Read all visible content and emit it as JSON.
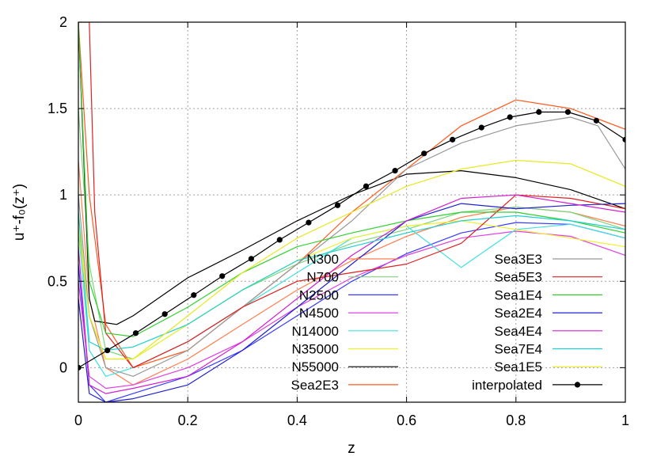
{
  "chart_data": {
    "type": "line",
    "title": "",
    "xlabel": "z",
    "ylabel": "u⁺-f₀(z⁺)",
    "xlim": [
      0,
      1
    ],
    "ylim": [
      -0.2,
      2
    ],
    "xticks": [
      "0",
      "0.2",
      "0.4",
      "0.6",
      "0.8",
      "1"
    ],
    "xtick_values": [
      0,
      0.2,
      0.4,
      0.6,
      0.8,
      1
    ],
    "yticks": [
      "0",
      "0.5",
      "1",
      "1.5",
      "2"
    ],
    "ytick_values": [
      0,
      0.5,
      1,
      1.5,
      2
    ],
    "grid": true,
    "legend_placement": "bottom-right, two columns",
    "series": [
      {
        "name": "N300",
        "color": "#ff7f50",
        "col": 0,
        "x": [
          0.0,
          0.02,
          0.05,
          0.1,
          0.2,
          0.3,
          0.4,
          0.5,
          0.6,
          0.7,
          0.8,
          0.9,
          1.0
        ],
        "y": [
          1.2,
          0.4,
          0.0,
          -0.1,
          0.05,
          0.25,
          0.45,
          0.62,
          0.76,
          0.87,
          0.93,
          0.9,
          0.82
        ]
      },
      {
        "name": "N700",
        "color": "#7fd47f",
        "col": 0,
        "x": [
          0.0,
          0.02,
          0.05,
          0.1,
          0.2,
          0.3,
          0.4,
          0.5,
          0.6,
          0.7,
          0.8,
          0.9,
          1.0
        ],
        "y": [
          1.5,
          0.6,
          0.1,
          0.05,
          0.25,
          0.45,
          0.6,
          0.72,
          0.8,
          0.9,
          0.93,
          0.9,
          0.8
        ]
      },
      {
        "name": "N2500",
        "color": "#3a3aff",
        "col": 0,
        "x": [
          0.0,
          0.02,
          0.05,
          0.1,
          0.2,
          0.3,
          0.4,
          0.5,
          0.6,
          0.7,
          0.8,
          0.9,
          1.0
        ],
        "y": [
          0.6,
          -0.1,
          -0.2,
          -0.15,
          -0.05,
          0.1,
          0.3,
          0.5,
          0.66,
          0.78,
          0.84,
          0.83,
          0.75
        ]
      },
      {
        "name": "N4500",
        "color": "#e040e0",
        "col": 0,
        "x": [
          0.0,
          0.02,
          0.05,
          0.1,
          0.2,
          0.3,
          0.4,
          0.5,
          0.6,
          0.7,
          0.8,
          0.9,
          1.0
        ],
        "y": [
          0.5,
          -0.05,
          -0.12,
          -0.1,
          0.0,
          0.15,
          0.35,
          0.52,
          0.65,
          0.75,
          0.79,
          0.76,
          0.65
        ]
      },
      {
        "name": "N14000",
        "color": "#40e0e0",
        "col": 0,
        "x": [
          0.0,
          0.02,
          0.05,
          0.1,
          0.2,
          0.3,
          0.4,
          0.5,
          0.6,
          0.7,
          0.8,
          0.9,
          1.0
        ],
        "y": [
          0.8,
          0.1,
          -0.05,
          0.0,
          0.15,
          0.35,
          0.55,
          0.75,
          0.82,
          0.58,
          0.8,
          0.83,
          0.75
        ]
      },
      {
        "name": "N35000",
        "color": "#f0f030",
        "col": 0,
        "x": [
          0.0,
          0.02,
          0.05,
          0.1,
          0.2,
          0.3,
          0.4,
          0.5,
          0.6,
          0.7,
          0.8,
          0.9,
          1.0
        ],
        "y": [
          0.9,
          0.3,
          0.05,
          0.05,
          0.25,
          0.45,
          0.62,
          0.75,
          0.82,
          0.85,
          0.8,
          0.75,
          0.7
        ]
      },
      {
        "name": "N55000",
        "color": "#000000",
        "col": 0,
        "x": [
          0.0,
          0.02,
          0.03,
          0.05,
          0.07,
          0.1,
          0.2,
          0.3,
          0.4,
          0.5,
          0.6,
          0.7,
          0.8,
          0.9,
          1.0
        ],
        "y": [
          2.0,
          0.4,
          0.27,
          0.26,
          0.25,
          0.3,
          0.52,
          0.68,
          0.85,
          1.0,
          1.12,
          1.14,
          1.1,
          1.03,
          0.92
        ]
      },
      {
        "name": "Sea2E3",
        "color": "#ff5a1e",
        "col": 0,
        "x": [
          0.0,
          0.02,
          0.05,
          0.1,
          0.2,
          0.3,
          0.4,
          0.5,
          0.6,
          0.7,
          0.8,
          0.9,
          1.0
        ],
        "y": [
          2.0,
          1.0,
          0.25,
          0.0,
          0.1,
          0.35,
          0.6,
          0.9,
          1.15,
          1.4,
          1.55,
          1.5,
          1.38
        ]
      },
      {
        "name": "Sea3E3",
        "color": "#999999",
        "col": 1,
        "x": [
          0.0,
          0.02,
          0.05,
          0.1,
          0.2,
          0.3,
          0.4,
          0.5,
          0.6,
          0.7,
          0.8,
          0.9,
          0.95,
          1.0
        ],
        "y": [
          1.0,
          0.3,
          0.0,
          -0.05,
          0.1,
          0.35,
          0.6,
          0.85,
          1.15,
          1.3,
          1.4,
          1.45,
          1.4,
          1.15
        ]
      },
      {
        "name": "Sea5E3",
        "color": "#e02020",
        "col": 1,
        "x": [
          0.0,
          0.02,
          0.03,
          0.05,
          0.1,
          0.2,
          0.3,
          0.4,
          0.5,
          0.6,
          0.7,
          0.8,
          0.9,
          1.0
        ],
        "y": [
          2.0,
          2.0,
          0.9,
          0.2,
          0.0,
          0.15,
          0.35,
          0.5,
          0.55,
          0.6,
          0.72,
          1.0,
          0.98,
          0.92
        ]
      },
      {
        "name": "Sea1E4",
        "color": "#30d030",
        "col": 1,
        "x": [
          0.0,
          0.02,
          0.05,
          0.1,
          0.2,
          0.3,
          0.4,
          0.5,
          0.6,
          0.7,
          0.8,
          0.9,
          1.0
        ],
        "y": [
          2.0,
          0.5,
          0.2,
          0.18,
          0.35,
          0.55,
          0.7,
          0.78,
          0.85,
          0.9,
          0.9,
          0.85,
          0.78
        ]
      },
      {
        "name": "Sea2E4",
        "color": "#2020d0",
        "col": 1,
        "x": [
          0.0,
          0.02,
          0.05,
          0.1,
          0.2,
          0.3,
          0.4,
          0.5,
          0.6,
          0.7,
          0.8,
          0.9,
          1.0
        ],
        "y": [
          0.4,
          -0.15,
          -0.2,
          -0.18,
          -0.1,
          0.1,
          0.35,
          0.6,
          0.85,
          0.95,
          0.92,
          0.94,
          0.95
        ]
      },
      {
        "name": "Sea4E4",
        "color": "#d020d0",
        "col": 1,
        "x": [
          0.0,
          0.02,
          0.05,
          0.1,
          0.2,
          0.3,
          0.4,
          0.5,
          0.6,
          0.7,
          0.8,
          0.9,
          1.0
        ],
        "y": [
          0.7,
          -0.1,
          -0.15,
          -0.12,
          -0.05,
          0.15,
          0.4,
          0.65,
          0.85,
          0.98,
          1.0,
          0.95,
          0.9
        ]
      },
      {
        "name": "Sea7E4",
        "color": "#20d0d0",
        "col": 1,
        "x": [
          0.0,
          0.02,
          0.05,
          0.1,
          0.2,
          0.3,
          0.4,
          0.5,
          0.6,
          0.7,
          0.8,
          0.9,
          1.0
        ],
        "y": [
          0.9,
          0.15,
          0.1,
          0.12,
          0.25,
          0.45,
          0.62,
          0.7,
          0.78,
          0.85,
          0.88,
          0.85,
          0.8
        ]
      },
      {
        "name": "Sea1E5",
        "color": "#e8e820",
        "col": 1,
        "x": [
          0.0,
          0.02,
          0.05,
          0.1,
          0.2,
          0.3,
          0.4,
          0.5,
          0.6,
          0.7,
          0.8,
          0.9,
          1.0
        ],
        "y": [
          0.8,
          0.3,
          0.05,
          0.05,
          0.3,
          0.55,
          0.75,
          0.9,
          1.05,
          1.15,
          1.2,
          1.18,
          1.05
        ]
      },
      {
        "name": "interpolated",
        "color": "#000000",
        "col": 1,
        "markers": true,
        "x": [
          0.0,
          0.053,
          0.105,
          0.158,
          0.211,
          0.263,
          0.316,
          0.368,
          0.421,
          0.474,
          0.526,
          0.579,
          0.632,
          0.684,
          0.737,
          0.789,
          0.842,
          0.895,
          0.947,
          1.0
        ],
        "y": [
          0.0,
          0.1,
          0.2,
          0.31,
          0.42,
          0.53,
          0.63,
          0.74,
          0.84,
          0.94,
          1.05,
          1.14,
          1.24,
          1.32,
          1.39,
          1.45,
          1.48,
          1.48,
          1.43,
          1.32
        ]
      }
    ]
  }
}
